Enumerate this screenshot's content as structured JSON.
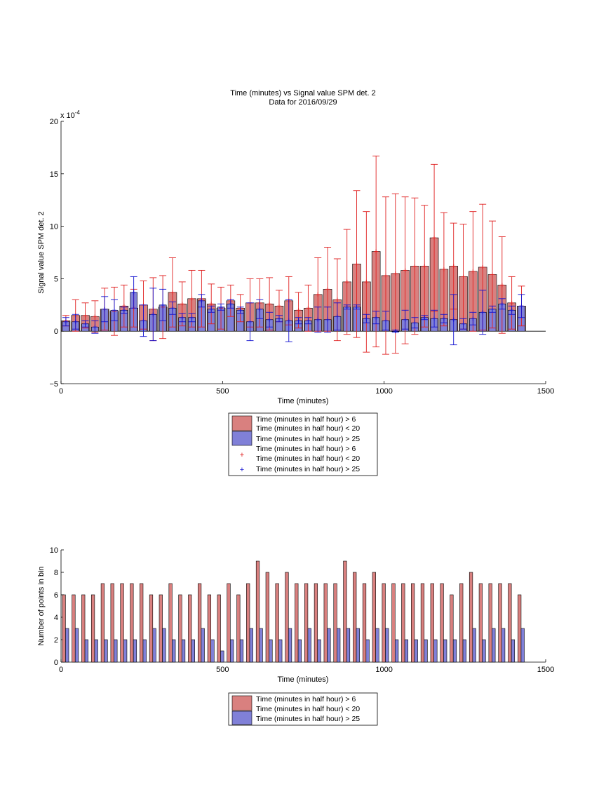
{
  "colors": {
    "red_bar": "#d9807f",
    "blue_bar": "#8080d8",
    "red_line": "#e02020",
    "blue_line": "#1010d0"
  },
  "chart_data": [
    {
      "type": "bar",
      "title": "Time (minutes) vs Signal value SPM det. 2",
      "subtitle": "Data for 2016/09/29",
      "xlabel": "Time (minutes)",
      "ylabel": "Signal value SPM det. 2",
      "exponent_label": "x 10",
      "exponent_power": "-4",
      "xlim": [
        0,
        1500
      ],
      "ylim": [
        -5,
        20
      ],
      "y_units": "x 10^-4",
      "xticks": [
        "0",
        "500",
        "1000",
        "1500"
      ],
      "yticks": [
        "−5",
        "0",
        "5",
        "10",
        "15",
        "20"
      ],
      "grid": false,
      "legend_position": "below",
      "legend": [
        {
          "label_top": "Time (minutes in half hour) > 6",
          "label_bottom": "Time (minutes in half hour) < 20",
          "marker": "patch-red"
        },
        {
          "label": "Time (minutes in half hour) > 25",
          "marker": "patch-blue"
        },
        {
          "label_top": "Time (minutes in half hour) > 6",
          "label_bottom": "Time (minutes in half hour) < 20",
          "marker": "plus-red"
        },
        {
          "label": "Time (minutes in half hour) > 25",
          "marker": "plus-blue"
        }
      ],
      "x": [
        15,
        45,
        75,
        105,
        135,
        165,
        195,
        225,
        255,
        285,
        315,
        345,
        375,
        405,
        435,
        465,
        495,
        525,
        555,
        585,
        615,
        645,
        675,
        705,
        735,
        765,
        795,
        825,
        855,
        885,
        915,
        945,
        975,
        1005,
        1035,
        1065,
        1095,
        1125,
        1155,
        1185,
        1215,
        1245,
        1275,
        1305,
        1335,
        1365,
        1395,
        1425
      ],
      "series": [
        {
          "name": "Time (minutes in half hour) > 6 / Time (minutes in half hour) < 20",
          "values": [
            1.0,
            1.5,
            1.5,
            1.4,
            2.1,
            1.9,
            2.4,
            2.2,
            2.5,
            2.1,
            2.3,
            3.7,
            2.6,
            3.1,
            3.1,
            2.6,
            2.2,
            2.9,
            2.2,
            2.7,
            2.7,
            2.6,
            2.4,
            2.9,
            2.0,
            2.2,
            3.5,
            4.0,
            3.0,
            4.7,
            6.4,
            4.7,
            7.6,
            5.3,
            5.5,
            5.8,
            6.2,
            6.2,
            8.9,
            5.9,
            6.2,
            5.2,
            5.7,
            6.1,
            5.4,
            4.4,
            2.7,
            2.4
          ],
          "err": [
            0.5,
            1.5,
            1.2,
            1.5,
            2.0,
            2.3,
            2.0,
            1.8,
            2.3,
            3.0,
            3.0,
            3.3,
            2.1,
            2.7,
            2.7,
            1.9,
            2.0,
            1.5,
            1.3,
            2.3,
            2.3,
            2.5,
            1.5,
            2.3,
            1.7,
            2.2,
            3.5,
            4.0,
            3.9,
            5.0,
            7.0,
            6.7,
            9.1,
            7.5,
            7.6,
            7.0,
            6.5,
            5.8,
            7.0,
            5.4,
            4.1,
            5.0,
            5.7,
            6.0,
            5.1,
            4.6,
            2.5,
            1.9
          ]
        },
        {
          "name": "Time (minutes in half hour) > 25",
          "values": [
            0.9,
            0.9,
            0.7,
            0.4,
            2.1,
            2.0,
            2.0,
            3.7,
            1.0,
            1.6,
            2.5,
            2.2,
            1.3,
            1.3,
            2.9,
            2.1,
            2.3,
            2.6,
            2.0,
            0.9,
            2.1,
            1.1,
            1.2,
            1.0,
            1.0,
            1.0,
            1.1,
            1.1,
            1.4,
            2.3,
            2.3,
            1.2,
            1.3,
            1.0,
            0.0,
            1.1,
            0.8,
            1.3,
            1.2,
            1.2,
            1.1,
            0.7,
            1.2,
            1.8,
            2.1,
            2.6,
            2.0,
            2.4
          ],
          "err": [
            0.4,
            0.7,
            0.3,
            0.6,
            1.2,
            1.0,
            0.3,
            1.5,
            1.5,
            2.5,
            1.5,
            0.6,
            0.4,
            0.4,
            0.6,
            0.3,
            0.3,
            0.4,
            0.3,
            1.8,
            0.9,
            0.7,
            0.3,
            2.0,
            0.3,
            0.3,
            1.2,
            1.2,
            1.3,
            0.2,
            0.2,
            0.4,
            0.6,
            0.9,
            0.1,
            0.9,
            0.5,
            0.2,
            0.8,
            0.4,
            2.4,
            0.5,
            0.6,
            2.1,
            0.3,
            0.5,
            0.4,
            1.1
          ]
        }
      ]
    },
    {
      "type": "bar",
      "xlabel": "Time (minutes)",
      "ylabel": "Number of points in bin",
      "xlim": [
        0,
        1500
      ],
      "ylim": [
        0,
        10
      ],
      "xticks": [
        "0",
        "500",
        "1000",
        "1500"
      ],
      "yticks": [
        "0",
        "2",
        "4",
        "6",
        "8",
        "10"
      ],
      "grid": false,
      "legend_position": "below",
      "legend": [
        {
          "label_top": "Time (minutes in half hour) > 6",
          "label_bottom": "Time (minutes in half hour) < 20",
          "marker": "patch-red"
        },
        {
          "label": "Time (minutes in half hour) > 25",
          "marker": "patch-blue"
        }
      ],
      "x": [
        15,
        45,
        75,
        105,
        135,
        165,
        195,
        225,
        255,
        285,
        315,
        345,
        375,
        405,
        435,
        465,
        495,
        525,
        555,
        585,
        615,
        645,
        675,
        705,
        735,
        765,
        795,
        825,
        855,
        885,
        915,
        945,
        975,
        1005,
        1035,
        1065,
        1095,
        1125,
        1155,
        1185,
        1215,
        1245,
        1275,
        1305,
        1335,
        1365,
        1395,
        1425
      ],
      "series": [
        {
          "name": "Time (minutes in half hour) > 6 / Time (minutes in half hour) < 20",
          "values": [
            6,
            6,
            6,
            6,
            7,
            7,
            7,
            7,
            7,
            6,
            6,
            7,
            6,
            6,
            7,
            6,
            6,
            7,
            6,
            7,
            9,
            8,
            7,
            8,
            7,
            7,
            7,
            7,
            7,
            9,
            8,
            7,
            8,
            7,
            7,
            7,
            7,
            7,
            7,
            7,
            6,
            7,
            8,
            7,
            7,
            7,
            7,
            6
          ]
        },
        {
          "name": "Time (minutes in half hour) > 25",
          "values": [
            3,
            3,
            2,
            2,
            2,
            2,
            2,
            2,
            2,
            3,
            3,
            2,
            2,
            2,
            3,
            2,
            1,
            2,
            2,
            3,
            3,
            2,
            2,
            3,
            2,
            3,
            2,
            3,
            3,
            3,
            3,
            2,
            3,
            3,
            2,
            2,
            2,
            2,
            2,
            2,
            2,
            2,
            3,
            2,
            3,
            3,
            2,
            3
          ]
        }
      ]
    }
  ]
}
